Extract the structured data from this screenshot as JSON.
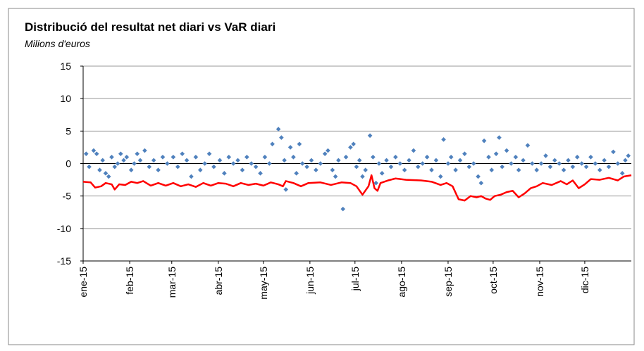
{
  "chart_data": {
    "type": "scatter",
    "title": "Distribució del resultat net diari vs VaR diari",
    "subtitle": "Milions d'euros",
    "xlim": [
      0,
      365
    ],
    "xticks": [
      {
        "value": 0,
        "label": "ene-15"
      },
      {
        "value": 31,
        "label": "feb-15"
      },
      {
        "value": 59,
        "label": "mar-15"
      },
      {
        "value": 90,
        "label": "abr-15"
      },
      {
        "value": 120,
        "label": "may-15"
      },
      {
        "value": 151,
        "label": "jun-15"
      },
      {
        "value": 181,
        "label": "jul-15"
      },
      {
        "value": 212,
        "label": "ago-15"
      },
      {
        "value": 243,
        "label": "sep-15"
      },
      {
        "value": 273,
        "label": "oct-15"
      },
      {
        "value": 304,
        "label": "nov-15"
      },
      {
        "value": 334,
        "label": "dic-15"
      }
    ],
    "ylim": [
      -15,
      15
    ],
    "yticks": [
      -15,
      -10,
      -5,
      0,
      5,
      10,
      15
    ],
    "grid": true,
    "series": [
      {
        "type": "scatter",
        "color": "#4f81bd",
        "x": [
          2,
          4,
          7,
          9,
          11,
          13,
          15,
          17,
          19,
          21,
          23,
          25,
          27,
          29,
          32,
          34,
          36,
          38,
          41,
          44,
          47,
          50,
          53,
          56,
          60,
          63,
          66,
          69,
          72,
          75,
          78,
          81,
          84,
          87,
          91,
          94,
          97,
          100,
          103,
          106,
          109,
          112,
          115,
          118,
          121,
          124,
          126,
          130,
          132,
          134,
          135,
          138,
          140,
          142,
          144,
          146,
          149,
          152,
          155,
          158,
          161,
          163,
          166,
          168,
          170,
          173,
          175,
          178,
          180,
          182,
          184,
          186,
          188,
          191,
          193,
          195,
          197,
          199,
          202,
          205,
          208,
          211,
          214,
          217,
          220,
          223,
          226,
          229,
          232,
          235,
          238,
          240,
          243,
          245,
          248,
          251,
          254,
          257,
          260,
          263,
          265,
          267,
          270,
          272,
          275,
          277,
          279,
          282,
          285,
          288,
          290,
          293,
          296,
          299,
          302,
          305,
          308,
          311,
          314,
          317,
          320,
          323,
          326,
          329,
          332,
          335,
          338,
          341,
          344,
          347,
          350,
          353,
          356,
          359,
          361,
          363
        ],
        "values": [
          1.5,
          -0.5,
          2,
          1.5,
          -1,
          0.5,
          -1.5,
          -2,
          1,
          -0.5,
          0,
          1.5,
          0.5,
          1,
          -1,
          0,
          1.5,
          0.5,
          2,
          -0.5,
          0.5,
          -1,
          1,
          0,
          1,
          -0.5,
          1.5,
          0.5,
          -2,
          1,
          -1,
          0,
          1.5,
          -0.5,
          0.5,
          -1.5,
          1,
          0,
          0.5,
          -1,
          1,
          0,
          -0.5,
          -1.5,
          1,
          0,
          3,
          5.3,
          4,
          0.5,
          -4,
          2.5,
          1,
          -1.5,
          3,
          0,
          -0.5,
          0.5,
          -1,
          0,
          1.5,
          2,
          -1,
          -2,
          0.5,
          -7,
          1,
          2.5,
          3,
          -0.5,
          0.5,
          -2,
          -1,
          4.3,
          1,
          -3,
          0,
          -1.5,
          0.5,
          -0.5,
          1,
          0,
          -1,
          0.5,
          2,
          -0.5,
          0,
          1,
          -1,
          0.5,
          -2,
          3.7,
          0,
          1,
          -1,
          0.5,
          1.5,
          -0.5,
          0,
          -2,
          -3,
          3.5,
          1,
          -1,
          1.5,
          4,
          -0.5,
          2,
          0,
          1,
          -1,
          0.5,
          2.8,
          0,
          -1,
          0,
          1.2,
          -0.5,
          0.5,
          0,
          -1,
          0.5,
          -0.5,
          1,
          0,
          -0.5,
          1,
          0,
          -1,
          0.5,
          -0.5,
          1.8,
          0,
          -1.5,
          0.5,
          1.2
        ]
      },
      {
        "type": "line",
        "color": "#ff0000",
        "x": [
          0,
          5,
          8,
          12,
          15,
          19,
          21,
          24,
          28,
          32,
          36,
          40,
          45,
          50,
          55,
          60,
          65,
          70,
          75,
          80,
          85,
          90,
          95,
          100,
          105,
          110,
          115,
          120,
          125,
          130,
          133,
          135,
          140,
          145,
          150,
          158,
          165,
          172,
          178,
          182,
          186,
          190,
          192,
          194,
          196,
          198,
          203,
          208,
          215,
          225,
          232,
          238,
          242,
          246,
          250,
          254,
          258,
          262,
          265,
          268,
          271,
          274,
          278,
          282,
          286,
          290,
          294,
          298,
          302,
          306,
          312,
          318,
          322,
          326,
          330,
          334,
          338,
          344,
          350,
          356,
          360,
          365
        ],
        "values": [
          -2.8,
          -2.9,
          -3.7,
          -3.5,
          -3,
          -3.2,
          -4,
          -3.2,
          -3.3,
          -2.8,
          -3,
          -2.7,
          -3.4,
          -3,
          -3.4,
          -3,
          -3.5,
          -3.2,
          -3.6,
          -3,
          -3.4,
          -3,
          -3.1,
          -3.5,
          -3,
          -3.3,
          -3.1,
          -3.4,
          -2.9,
          -3.2,
          -3.5,
          -2.7,
          -3,
          -3.5,
          -3,
          -2.9,
          -3.3,
          -2.9,
          -3,
          -3.5,
          -4.8,
          -3.5,
          -1.8,
          -3.8,
          -4.2,
          -3,
          -2.6,
          -2.3,
          -2.5,
          -2.6,
          -2.8,
          -3.3,
          -3,
          -3.5,
          -5.5,
          -5.7,
          -5,
          -5.2,
          -5,
          -5.4,
          -5.6,
          -5,
          -4.8,
          -4.4,
          -4.2,
          -5.2,
          -4.6,
          -3.8,
          -3.5,
          -3,
          -3.3,
          -2.7,
          -3.2,
          -2.6,
          -3.8,
          -3.2,
          -2.4,
          -2.5,
          -2.2,
          -2.6,
          -2,
          -1.8
        ]
      }
    ]
  }
}
